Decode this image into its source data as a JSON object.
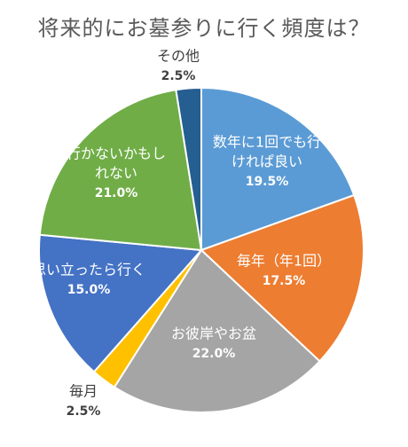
{
  "chart_data": {
    "type": "pie",
    "title": "将来的にお墓参りに行く頻度は？",
    "slices": [
      {
        "label_lines": [
          "数年に1回でも行",
          "けれぱ良い"
        ],
        "value": 19.5,
        "value_text": "19.5%",
        "color": "#5b9bd5"
      },
      {
        "label_lines": [
          "毎年（年1回）"
        ],
        "value": 17.5,
        "value_text": "17.5%",
        "color": "#ed7d31"
      },
      {
        "label_lines": [
          "お彼岸やお盆"
        ],
        "value": 22.0,
        "value_text": "22.0%",
        "color": "#a5a5a5"
      },
      {
        "label_lines": [
          "毎月"
        ],
        "value": 2.5,
        "value_text": "2.5%",
        "color": "#ffc000"
      },
      {
        "label_lines": [
          "思い立ったら行く"
        ],
        "value": 15.0,
        "value_text": "15.0%",
        "color": "#4472c4"
      },
      {
        "label_lines": [
          "行かないかもし",
          "れない"
        ],
        "value": 21.0,
        "value_text": "21.0%",
        "color": "#70ad47"
      },
      {
        "label_lines": [
          "その他"
        ],
        "value": 2.5,
        "value_text": "2.5%",
        "color": "#255e91"
      }
    ]
  }
}
